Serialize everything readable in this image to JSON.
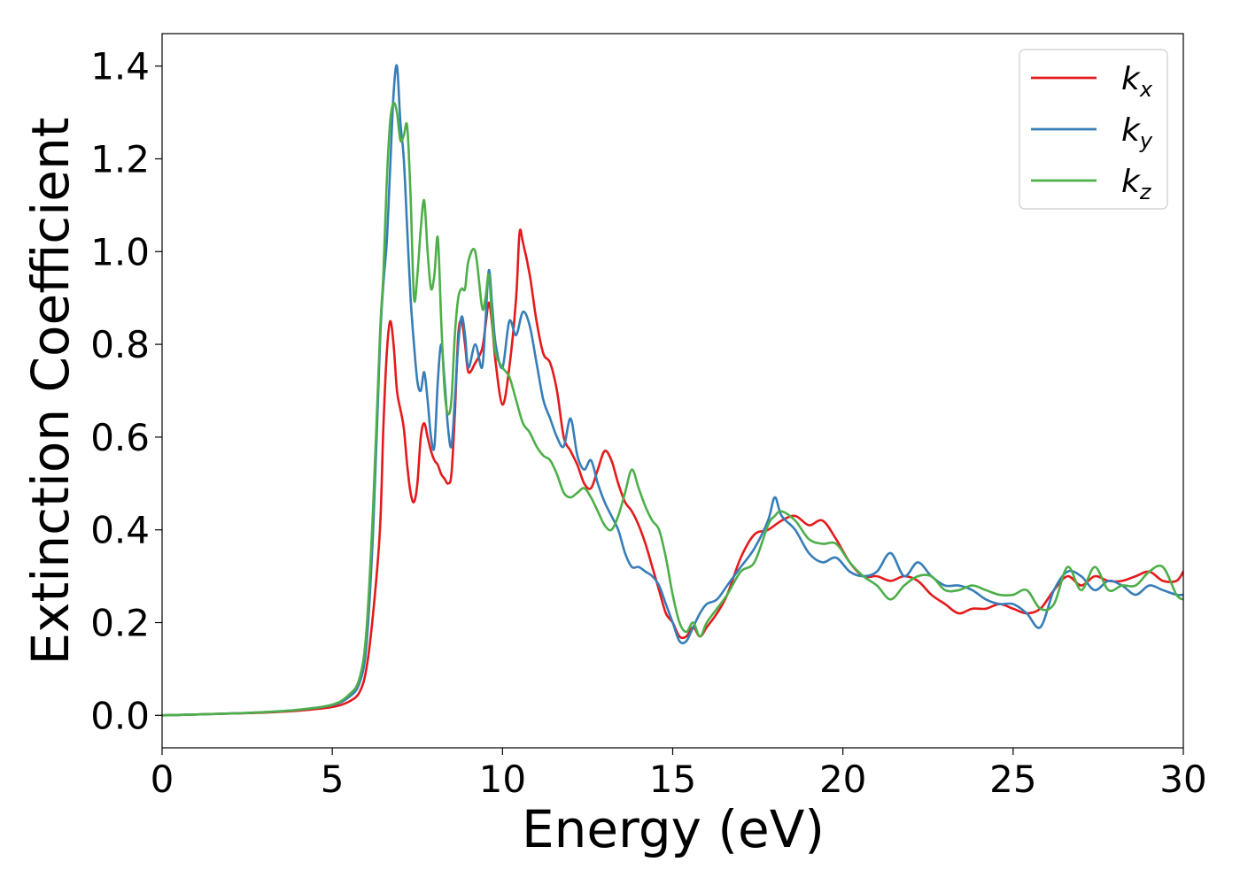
{
  "chart_data": {
    "type": "line",
    "xlabel": "Energy (eV)",
    "ylabel": "Extinction Coefficient",
    "xlim": [
      0,
      30
    ],
    "ylim": [
      -0.07,
      1.47
    ],
    "xticks": [
      0,
      5,
      10,
      15,
      20,
      25,
      30
    ],
    "yticks": [
      0.0,
      0.2,
      0.4,
      0.6,
      0.8,
      1.0,
      1.2,
      1.4
    ],
    "xtick_labels": [
      "0",
      "5",
      "10",
      "15",
      "20",
      "25",
      "30"
    ],
    "ytick_labels": [
      "0.0",
      "0.2",
      "0.4",
      "0.6",
      "0.8",
      "1.0",
      "1.2",
      "1.4"
    ],
    "grid": false,
    "legend_position": "top-right",
    "series": [
      {
        "name": "k",
        "subscript": "x",
        "color": "#e41a1c",
        "x": [
          0,
          1,
          2,
          3,
          4,
          5,
          5.5,
          5.8,
          6.0,
          6.2,
          6.4,
          6.5,
          6.6,
          6.7,
          6.8,
          6.9,
          7.0,
          7.1,
          7.2,
          7.3,
          7.4,
          7.5,
          7.6,
          7.7,
          7.8,
          7.9,
          8.0,
          8.1,
          8.2,
          8.3,
          8.4,
          8.5,
          8.6,
          8.7,
          8.8,
          8.9,
          9.0,
          9.2,
          9.4,
          9.5,
          9.6,
          9.7,
          9.8,
          10.0,
          10.2,
          10.4,
          10.5,
          10.6,
          10.8,
          11.0,
          11.2,
          11.4,
          11.6,
          11.8,
          12.0,
          12.2,
          12.4,
          12.6,
          12.8,
          13.0,
          13.2,
          13.4,
          13.6,
          13.8,
          14.0,
          14.2,
          14.4,
          14.6,
          14.8,
          15.0,
          15.2,
          15.4,
          15.6,
          15.8,
          16.0,
          16.3,
          16.6,
          17.0,
          17.4,
          17.8,
          18.2,
          18.6,
          19.0,
          19.4,
          19.8,
          20.2,
          20.6,
          21.0,
          21.4,
          21.8,
          22.2,
          22.6,
          23.0,
          23.4,
          23.8,
          24.2,
          24.6,
          25.0,
          25.4,
          25.8,
          26.2,
          26.6,
          27.0,
          27.4,
          27.8,
          28.2,
          28.6,
          29.0,
          29.4,
          29.8,
          30.0
        ],
        "y": [
          0.0,
          0.002,
          0.004,
          0.006,
          0.01,
          0.018,
          0.03,
          0.05,
          0.1,
          0.22,
          0.4,
          0.62,
          0.78,
          0.85,
          0.8,
          0.7,
          0.66,
          0.62,
          0.54,
          0.48,
          0.46,
          0.5,
          0.6,
          0.63,
          0.6,
          0.57,
          0.55,
          0.54,
          0.52,
          0.51,
          0.5,
          0.52,
          0.65,
          0.82,
          0.85,
          0.8,
          0.74,
          0.76,
          0.79,
          0.84,
          0.89,
          0.84,
          0.76,
          0.67,
          0.75,
          0.9,
          1.04,
          1.02,
          0.95,
          0.85,
          0.78,
          0.76,
          0.7,
          0.6,
          0.57,
          0.54,
          0.5,
          0.49,
          0.53,
          0.57,
          0.55,
          0.5,
          0.46,
          0.44,
          0.41,
          0.37,
          0.32,
          0.27,
          0.22,
          0.2,
          0.17,
          0.17,
          0.19,
          0.17,
          0.19,
          0.22,
          0.26,
          0.34,
          0.39,
          0.4,
          0.42,
          0.43,
          0.41,
          0.42,
          0.38,
          0.33,
          0.3,
          0.3,
          0.29,
          0.3,
          0.29,
          0.26,
          0.24,
          0.22,
          0.23,
          0.23,
          0.24,
          0.23,
          0.22,
          0.23,
          0.27,
          0.3,
          0.28,
          0.3,
          0.29,
          0.29,
          0.3,
          0.31,
          0.29,
          0.29,
          0.31
        ]
      },
      {
        "name": "k",
        "subscript": "y",
        "color": "#377eb8",
        "x": [
          0,
          1,
          2,
          3,
          4,
          5,
          5.5,
          5.8,
          6.0,
          6.2,
          6.4,
          6.5,
          6.6,
          6.7,
          6.8,
          6.9,
          7.0,
          7.1,
          7.2,
          7.3,
          7.4,
          7.5,
          7.6,
          7.7,
          7.8,
          7.9,
          8.0,
          8.1,
          8.2,
          8.3,
          8.4,
          8.5,
          8.6,
          8.7,
          8.8,
          8.9,
          9.0,
          9.2,
          9.4,
          9.5,
          9.6,
          9.7,
          9.8,
          10.0,
          10.2,
          10.4,
          10.6,
          10.8,
          11.0,
          11.2,
          11.4,
          11.6,
          11.8,
          12.0,
          12.2,
          12.4,
          12.6,
          12.8,
          13.0,
          13.2,
          13.4,
          13.6,
          13.8,
          14.0,
          14.2,
          14.4,
          14.6,
          14.8,
          15.0,
          15.2,
          15.4,
          15.6,
          15.8,
          16.0,
          16.3,
          16.6,
          17.0,
          17.4,
          17.8,
          18.0,
          18.2,
          18.6,
          19.0,
          19.4,
          19.8,
          20.2,
          20.6,
          21.0,
          21.4,
          21.8,
          22.2,
          22.6,
          23.0,
          23.4,
          23.8,
          24.2,
          24.6,
          25.0,
          25.4,
          25.8,
          26.2,
          26.6,
          27.0,
          27.4,
          27.8,
          28.2,
          28.6,
          29.0,
          29.4,
          29.8,
          30.0
        ],
        "y": [
          0.0,
          0.002,
          0.004,
          0.007,
          0.012,
          0.022,
          0.04,
          0.07,
          0.15,
          0.4,
          0.8,
          0.93,
          1.02,
          1.18,
          1.34,
          1.4,
          1.28,
          1.2,
          1.05,
          0.9,
          0.8,
          0.72,
          0.7,
          0.74,
          0.68,
          0.6,
          0.58,
          0.72,
          0.8,
          0.72,
          0.62,
          0.58,
          0.68,
          0.8,
          0.86,
          0.82,
          0.75,
          0.8,
          0.75,
          0.85,
          0.96,
          0.88,
          0.8,
          0.75,
          0.85,
          0.82,
          0.87,
          0.84,
          0.76,
          0.68,
          0.64,
          0.6,
          0.58,
          0.64,
          0.56,
          0.53,
          0.55,
          0.5,
          0.46,
          0.43,
          0.4,
          0.35,
          0.32,
          0.32,
          0.31,
          0.3,
          0.28,
          0.24,
          0.2,
          0.16,
          0.16,
          0.19,
          0.22,
          0.24,
          0.25,
          0.28,
          0.32,
          0.36,
          0.42,
          0.47,
          0.43,
          0.4,
          0.35,
          0.33,
          0.34,
          0.31,
          0.3,
          0.31,
          0.35,
          0.3,
          0.33,
          0.3,
          0.28,
          0.28,
          0.27,
          0.25,
          0.24,
          0.24,
          0.22,
          0.19,
          0.27,
          0.31,
          0.3,
          0.27,
          0.29,
          0.28,
          0.26,
          0.28,
          0.27,
          0.26,
          0.26
        ]
      },
      {
        "name": "k",
        "subscript": "z",
        "color": "#4daf4a",
        "x": [
          0,
          1,
          2,
          3,
          4,
          5,
          5.5,
          5.8,
          6.0,
          6.2,
          6.4,
          6.5,
          6.6,
          6.7,
          6.8,
          6.9,
          7.0,
          7.1,
          7.2,
          7.3,
          7.4,
          7.5,
          7.6,
          7.7,
          7.8,
          7.9,
          8.0,
          8.1,
          8.2,
          8.3,
          8.4,
          8.5,
          8.6,
          8.7,
          8.8,
          8.9,
          9.0,
          9.2,
          9.4,
          9.5,
          9.6,
          9.7,
          9.8,
          10.0,
          10.2,
          10.4,
          10.6,
          10.8,
          11.0,
          11.2,
          11.4,
          11.6,
          11.8,
          12.0,
          12.2,
          12.4,
          12.6,
          12.8,
          13.0,
          13.2,
          13.4,
          13.6,
          13.8,
          14.0,
          14.2,
          14.4,
          14.6,
          14.8,
          15.0,
          15.2,
          15.4,
          15.6,
          15.8,
          16.0,
          16.3,
          16.6,
          17.0,
          17.4,
          17.8,
          18.0,
          18.2,
          18.6,
          19.0,
          19.4,
          19.8,
          20.2,
          20.6,
          21.0,
          21.4,
          21.8,
          22.2,
          22.6,
          23.0,
          23.4,
          23.8,
          24.2,
          24.6,
          25.0,
          25.4,
          25.8,
          26.2,
          26.6,
          27.0,
          27.4,
          27.8,
          28.2,
          28.6,
          29.0,
          29.4,
          29.8,
          30.0
        ],
        "y": [
          0.0,
          0.002,
          0.004,
          0.007,
          0.012,
          0.023,
          0.045,
          0.08,
          0.18,
          0.45,
          0.82,
          0.95,
          1.15,
          1.28,
          1.32,
          1.3,
          1.24,
          1.25,
          1.27,
          1.12,
          0.9,
          0.95,
          1.05,
          1.11,
          1.0,
          0.92,
          0.95,
          1.03,
          0.85,
          0.7,
          0.65,
          0.68,
          0.82,
          0.9,
          0.92,
          0.92,
          0.98,
          1.0,
          0.88,
          0.9,
          0.95,
          0.85,
          0.78,
          0.75,
          0.73,
          0.68,
          0.63,
          0.61,
          0.58,
          0.56,
          0.55,
          0.52,
          0.48,
          0.47,
          0.48,
          0.49,
          0.47,
          0.44,
          0.41,
          0.4,
          0.43,
          0.48,
          0.53,
          0.49,
          0.45,
          0.42,
          0.4,
          0.34,
          0.26,
          0.2,
          0.18,
          0.2,
          0.17,
          0.2,
          0.23,
          0.26,
          0.31,
          0.33,
          0.41,
          0.43,
          0.44,
          0.42,
          0.38,
          0.37,
          0.37,
          0.33,
          0.3,
          0.28,
          0.25,
          0.28,
          0.3,
          0.3,
          0.27,
          0.27,
          0.28,
          0.27,
          0.26,
          0.26,
          0.27,
          0.23,
          0.24,
          0.32,
          0.27,
          0.32,
          0.27,
          0.28,
          0.28,
          0.31,
          0.32,
          0.26,
          0.25
        ]
      }
    ]
  }
}
